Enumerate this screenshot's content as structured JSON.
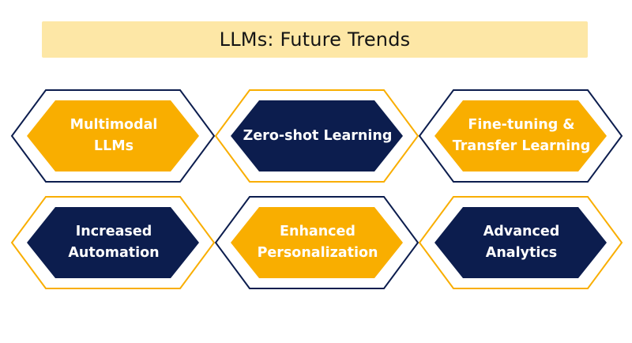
{
  "title": "LLMs: Future Trends",
  "colors": {
    "accent": "#f9ae00",
    "navy": "#0c1d4e",
    "title_bg": "#fde7a6",
    "dark_text": "#141414",
    "light_text": "#ffffff"
  },
  "trends": [
    {
      "label": "Multimodal\nLLMs",
      "fill": "gold",
      "outline": "navy"
    },
    {
      "label": "Zero-shot Learning",
      "fill": "navy",
      "outline": "gold"
    },
    {
      "label": "Fine-tuning &\nTransfer Learning",
      "fill": "gold",
      "outline": "navy"
    },
    {
      "label": "Increased\nAutomation",
      "fill": "navy",
      "outline": "gold"
    },
    {
      "label": "Enhanced\nPersonalization",
      "fill": "gold",
      "outline": "navy"
    },
    {
      "label": "Advanced\nAnalytics",
      "fill": "navy",
      "outline": "gold"
    }
  ]
}
